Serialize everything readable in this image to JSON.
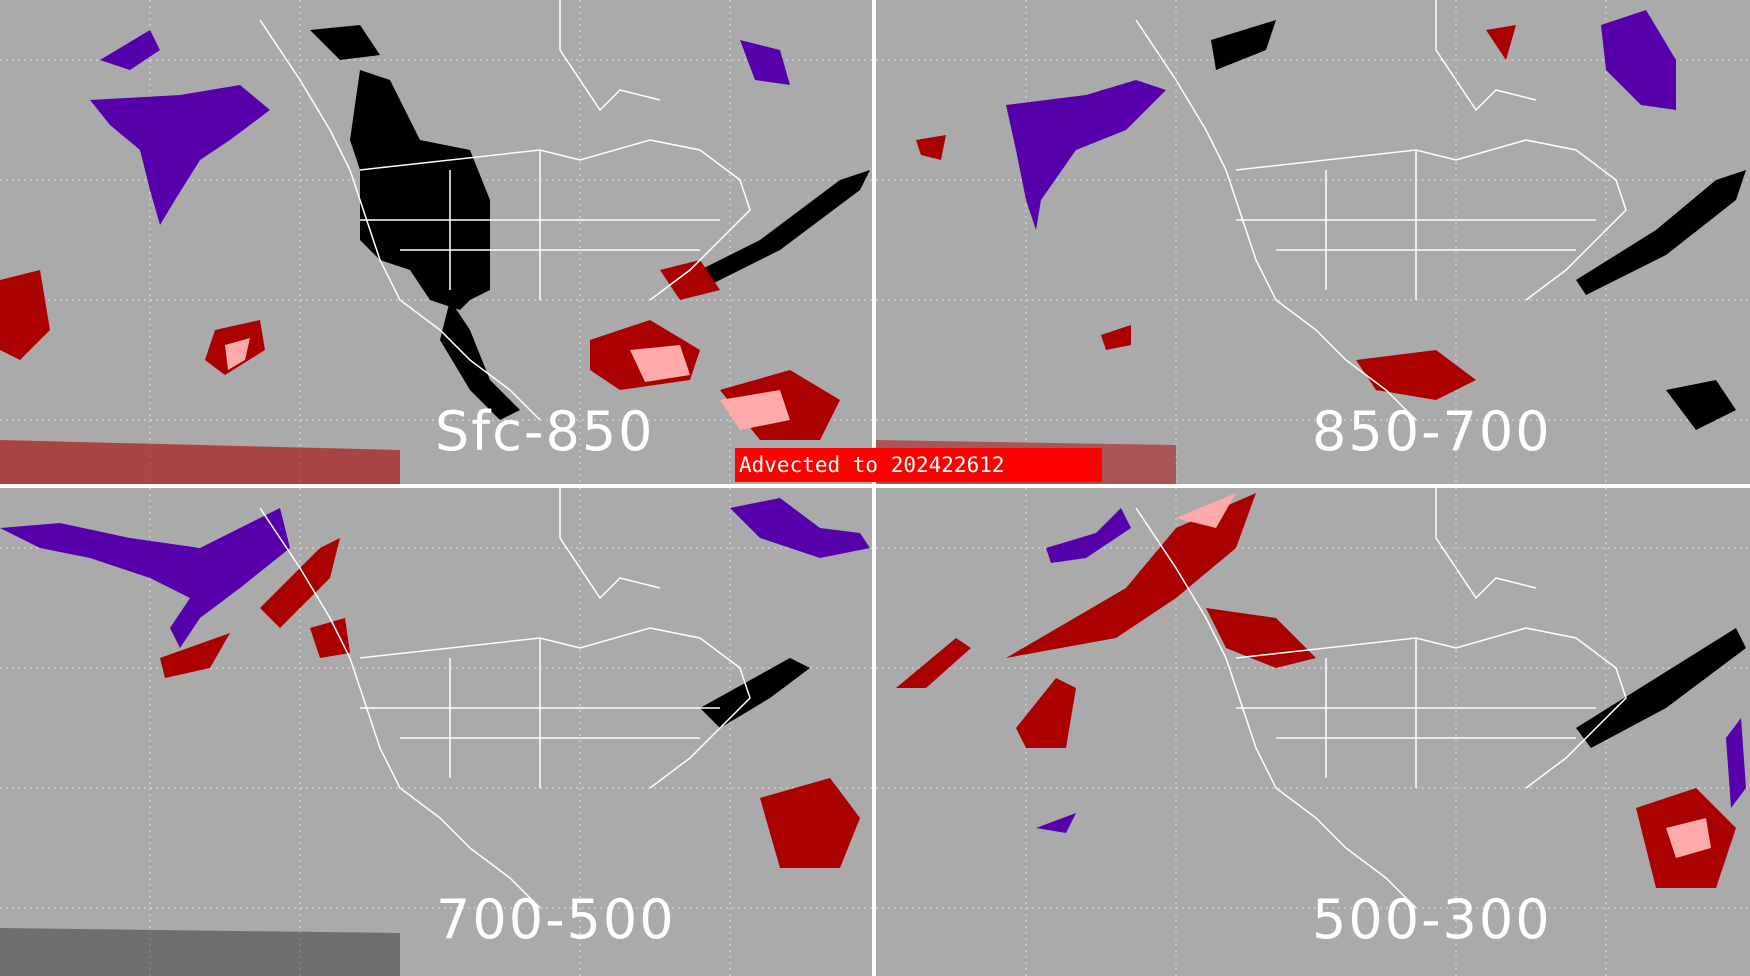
{
  "panels": [
    {
      "id": "sfc-850",
      "label": "Sfc-850"
    },
    {
      "id": "850-700",
      "label": "850-700"
    },
    {
      "id": "700-500",
      "label": "700-500"
    },
    {
      "id": "500-300",
      "label": "500-300"
    }
  ],
  "banner": {
    "text": "Advected to  202422612"
  },
  "colors": {
    "background": "#aaaaaa",
    "coastline": "#ffffff",
    "gridline": "#dddddd",
    "purple": "#5500aa",
    "dark_red": "#aa0000",
    "pink": "#ffaaaa",
    "black": "#000000",
    "banner": "#ff0000"
  }
}
